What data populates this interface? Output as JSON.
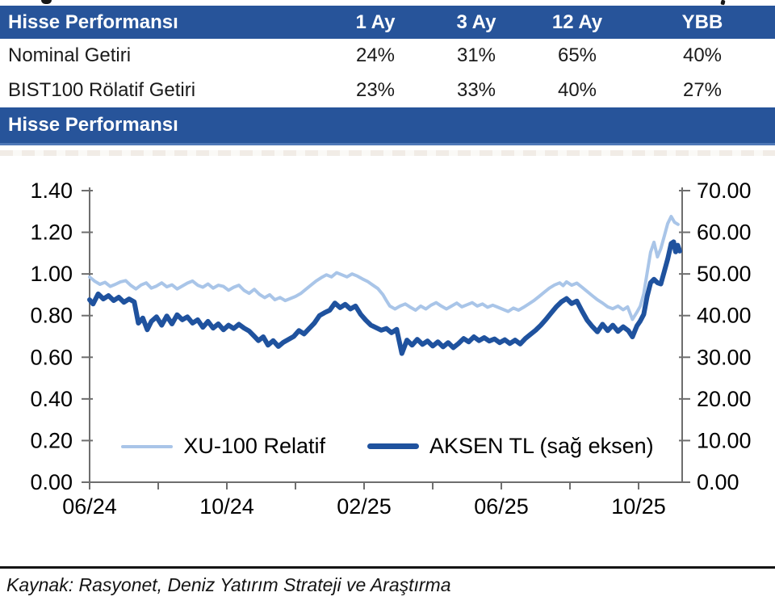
{
  "table": {
    "header": [
      "Hisse Performansı",
      "1 Ay",
      "3 Ay",
      "12 Ay",
      "YBB"
    ],
    "rows": [
      {
        "label": "Nominal Getiri",
        "values": [
          "24%",
          "31%",
          "65%",
          "40%"
        ]
      },
      {
        "label": "BIST100 Rölatif Getiri",
        "values": [
          "23%",
          "33%",
          "40%",
          "27%"
        ]
      }
    ]
  },
  "section_header": "Hisse Performansı",
  "colors": {
    "header_blue": "#27549A",
    "band_border_blue": "#4F78B7",
    "axis_gray": "#6e6e6e",
    "light_series": "#A9C5E8",
    "dark_series": "#1F529E"
  },
  "chart_data": {
    "type": "line",
    "title": "Hisse Performansı",
    "grid": false,
    "legend_position": "bottom-inside",
    "x_unit": "months since 06/2024",
    "x_domain_months": [
      0,
      17.27
    ],
    "x_tick_labels": [
      "06/24",
      "10/24",
      "02/25",
      "06/25",
      "10/25"
    ],
    "x_tick_positions_months": [
      0,
      4,
      8,
      12,
      16
    ],
    "minor_tick_every_months": 2,
    "left_axis": {
      "min": 0,
      "max": 1.4,
      "step": 0.2,
      "decimals": 2
    },
    "right_axis": {
      "min": 0,
      "max": 70.0,
      "step": 10,
      "decimals": 2
    },
    "series": [
      {
        "name": "XU-100 Relatif",
        "axis": "left",
        "color": "#A9C5E8",
        "stroke_width": 4,
        "points": [
          [
            0,
            0.985
          ],
          [
            0.15,
            0.965
          ],
          [
            0.3,
            0.95
          ],
          [
            0.45,
            0.96
          ],
          [
            0.6,
            0.94
          ],
          [
            0.75,
            0.95
          ],
          [
            0.9,
            0.962
          ],
          [
            1.05,
            0.968
          ],
          [
            1.2,
            0.945
          ],
          [
            1.35,
            0.928
          ],
          [
            1.5,
            0.947
          ],
          [
            1.65,
            0.957
          ],
          [
            1.8,
            0.932
          ],
          [
            1.95,
            0.942
          ],
          [
            2.1,
            0.957
          ],
          [
            2.25,
            0.938
          ],
          [
            2.4,
            0.948
          ],
          [
            2.55,
            0.928
          ],
          [
            2.7,
            0.942
          ],
          [
            2.85,
            0.956
          ],
          [
            3.0,
            0.966
          ],
          [
            3.15,
            0.946
          ],
          [
            3.3,
            0.936
          ],
          [
            3.45,
            0.952
          ],
          [
            3.6,
            0.932
          ],
          [
            3.75,
            0.946
          ],
          [
            3.9,
            0.94
          ],
          [
            4.05,
            0.922
          ],
          [
            4.2,
            0.936
          ],
          [
            4.35,
            0.946
          ],
          [
            4.5,
            0.921
          ],
          [
            4.65,
            0.907
          ],
          [
            4.8,
            0.926
          ],
          [
            4.95,
            0.902
          ],
          [
            5.1,
            0.886
          ],
          [
            5.25,
            0.9
          ],
          [
            5.4,
            0.876
          ],
          [
            5.55,
            0.887
          ],
          [
            5.7,
            0.872
          ],
          [
            5.85,
            0.882
          ],
          [
            6.0,
            0.892
          ],
          [
            6.15,
            0.906
          ],
          [
            6.3,
            0.926
          ],
          [
            6.45,
            0.946
          ],
          [
            6.6,
            0.966
          ],
          [
            6.75,
            0.982
          ],
          [
            6.9,
            0.996
          ],
          [
            7.05,
            0.986
          ],
          [
            7.2,
            1.006
          ],
          [
            7.35,
            0.996
          ],
          [
            7.5,
            0.986
          ],
          [
            7.65,
            1.0
          ],
          [
            7.8,
            0.99
          ],
          [
            7.95,
            0.976
          ],
          [
            8.1,
            0.964
          ],
          [
            8.25,
            0.947
          ],
          [
            8.4,
            0.93
          ],
          [
            8.55,
            0.9
          ],
          [
            8.65,
            0.872
          ],
          [
            8.75,
            0.846
          ],
          [
            8.9,
            0.832
          ],
          [
            9.05,
            0.846
          ],
          [
            9.2,
            0.856
          ],
          [
            9.35,
            0.84
          ],
          [
            9.5,
            0.826
          ],
          [
            9.65,
            0.846
          ],
          [
            9.8,
            0.832
          ],
          [
            9.95,
            0.85
          ],
          [
            10.1,
            0.862
          ],
          [
            10.25,
            0.846
          ],
          [
            10.4,
            0.832
          ],
          [
            10.55,
            0.846
          ],
          [
            10.7,
            0.86
          ],
          [
            10.85,
            0.842
          ],
          [
            11.0,
            0.852
          ],
          [
            11.15,
            0.862
          ],
          [
            11.3,
            0.846
          ],
          [
            11.45,
            0.856
          ],
          [
            11.6,
            0.84
          ],
          [
            11.75,
            0.85
          ],
          [
            11.9,
            0.84
          ],
          [
            12.05,
            0.83
          ],
          [
            12.2,
            0.82
          ],
          [
            12.35,
            0.836
          ],
          [
            12.5,
            0.826
          ],
          [
            12.65,
            0.84
          ],
          [
            12.8,
            0.856
          ],
          [
            12.95,
            0.872
          ],
          [
            13.1,
            0.892
          ],
          [
            13.25,
            0.912
          ],
          [
            13.4,
            0.932
          ],
          [
            13.55,
            0.947
          ],
          [
            13.7,
            0.957
          ],
          [
            13.8,
            0.944
          ],
          [
            13.9,
            0.962
          ],
          [
            14.05,
            0.946
          ],
          [
            14.2,
            0.956
          ],
          [
            14.35,
            0.936
          ],
          [
            14.5,
            0.916
          ],
          [
            14.65,
            0.896
          ],
          [
            14.8,
            0.876
          ],
          [
            14.95,
            0.86
          ],
          [
            15.1,
            0.842
          ],
          [
            15.25,
            0.833
          ],
          [
            15.4,
            0.846
          ],
          [
            15.55,
            0.828
          ],
          [
            15.68,
            0.842
          ],
          [
            15.82,
            0.782
          ],
          [
            15.95,
            0.816
          ],
          [
            16.05,
            0.845
          ],
          [
            16.15,
            0.905
          ],
          [
            16.25,
            1.005
          ],
          [
            16.35,
            1.105
          ],
          [
            16.45,
            1.152
          ],
          [
            16.55,
            1.082
          ],
          [
            16.65,
            1.122
          ],
          [
            16.75,
            1.182
          ],
          [
            16.85,
            1.242
          ],
          [
            16.95,
            1.276
          ],
          [
            17.05,
            1.248
          ],
          [
            17.15,
            1.238
          ]
        ]
      },
      {
        "name": "AKSEN TL (sağ eksen)",
        "axis": "right",
        "color": "#1F529E",
        "stroke_width": 6,
        "points": [
          [
            0,
            43.8
          ],
          [
            0.1,
            42.8
          ],
          [
            0.25,
            45.2
          ],
          [
            0.4,
            44.0
          ],
          [
            0.55,
            44.8
          ],
          [
            0.7,
            43.6
          ],
          [
            0.85,
            44.4
          ],
          [
            1.0,
            43.2
          ],
          [
            1.15,
            44.0
          ],
          [
            1.3,
            43.3
          ],
          [
            1.42,
            38.2
          ],
          [
            1.55,
            39.4
          ],
          [
            1.68,
            36.6
          ],
          [
            1.8,
            38.6
          ],
          [
            1.95,
            39.7
          ],
          [
            2.1,
            37.7
          ],
          [
            2.25,
            39.9
          ],
          [
            2.4,
            38.0
          ],
          [
            2.55,
            40.2
          ],
          [
            2.7,
            39.0
          ],
          [
            2.85,
            39.7
          ],
          [
            3.0,
            38.2
          ],
          [
            3.15,
            39.0
          ],
          [
            3.3,
            37.2
          ],
          [
            3.45,
            38.6
          ],
          [
            3.6,
            37.0
          ],
          [
            3.75,
            38.0
          ],
          [
            3.9,
            36.6
          ],
          [
            4.05,
            37.7
          ],
          [
            4.2,
            36.9
          ],
          [
            4.35,
            37.9
          ],
          [
            4.5,
            37.0
          ],
          [
            4.65,
            36.3
          ],
          [
            4.78,
            35.2
          ],
          [
            4.92,
            34.0
          ],
          [
            5.06,
            34.9
          ],
          [
            5.2,
            32.9
          ],
          [
            5.35,
            34.0
          ],
          [
            5.5,
            32.6
          ],
          [
            5.65,
            33.6
          ],
          [
            5.8,
            34.3
          ],
          [
            5.95,
            35.0
          ],
          [
            6.1,
            36.4
          ],
          [
            6.25,
            35.6
          ],
          [
            6.4,
            36.9
          ],
          [
            6.55,
            38.2
          ],
          [
            6.7,
            40.0
          ],
          [
            6.85,
            40.7
          ],
          [
            7.0,
            41.3
          ],
          [
            7.15,
            43.0
          ],
          [
            7.3,
            41.9
          ],
          [
            7.45,
            42.7
          ],
          [
            7.6,
            41.6
          ],
          [
            7.75,
            42.3
          ],
          [
            7.9,
            40.3
          ],
          [
            8.05,
            38.9
          ],
          [
            8.2,
            37.7
          ],
          [
            8.35,
            37.1
          ],
          [
            8.5,
            36.5
          ],
          [
            8.65,
            36.9
          ],
          [
            8.8,
            35.9
          ],
          [
            8.95,
            36.7
          ],
          [
            9.1,
            30.9
          ],
          [
            9.25,
            34.1
          ],
          [
            9.4,
            32.9
          ],
          [
            9.55,
            34.3
          ],
          [
            9.7,
            33.1
          ],
          [
            9.85,
            33.9
          ],
          [
            10.0,
            32.7
          ],
          [
            10.15,
            33.7
          ],
          [
            10.3,
            32.5
          ],
          [
            10.45,
            33.5
          ],
          [
            10.6,
            32.3
          ],
          [
            10.75,
            33.3
          ],
          [
            10.9,
            34.5
          ],
          [
            11.05,
            33.7
          ],
          [
            11.2,
            34.9
          ],
          [
            11.35,
            34.0
          ],
          [
            11.5,
            34.7
          ],
          [
            11.65,
            33.9
          ],
          [
            11.8,
            34.4
          ],
          [
            11.95,
            33.5
          ],
          [
            12.1,
            34.2
          ],
          [
            12.25,
            33.3
          ],
          [
            12.4,
            34.1
          ],
          [
            12.55,
            33.2
          ],
          [
            12.7,
            34.5
          ],
          [
            12.85,
            35.5
          ],
          [
            13.0,
            36.5
          ],
          [
            13.15,
            37.7
          ],
          [
            13.3,
            39.1
          ],
          [
            13.45,
            40.6
          ],
          [
            13.6,
            42.1
          ],
          [
            13.75,
            43.3
          ],
          [
            13.9,
            44.1
          ],
          [
            14.05,
            42.9
          ],
          [
            14.2,
            43.5
          ],
          [
            14.35,
            41.1
          ],
          [
            14.5,
            38.9
          ],
          [
            14.65,
            37.4
          ],
          [
            14.8,
            36.1
          ],
          [
            14.95,
            37.9
          ],
          [
            15.1,
            36.4
          ],
          [
            15.25,
            37.7
          ],
          [
            15.4,
            36.2
          ],
          [
            15.55,
            37.3
          ],
          [
            15.7,
            36.4
          ],
          [
            15.82,
            34.9
          ],
          [
            15.95,
            37.5
          ],
          [
            16.05,
            38.7
          ],
          [
            16.15,
            40.3
          ],
          [
            16.25,
            44.6
          ],
          [
            16.35,
            47.9
          ],
          [
            16.45,
            48.7
          ],
          [
            16.55,
            47.9
          ],
          [
            16.65,
            47.6
          ],
          [
            16.75,
            50.6
          ],
          [
            16.85,
            53.6
          ],
          [
            16.95,
            57.3
          ],
          [
            17.02,
            57.7
          ],
          [
            17.08,
            55.3
          ],
          [
            17.14,
            56.9
          ],
          [
            17.2,
            55.5
          ]
        ]
      }
    ]
  },
  "footer": {
    "source_text": "Kaynak: Rasyonet, Deniz Yatırım Strateji ve Araştırma"
  }
}
